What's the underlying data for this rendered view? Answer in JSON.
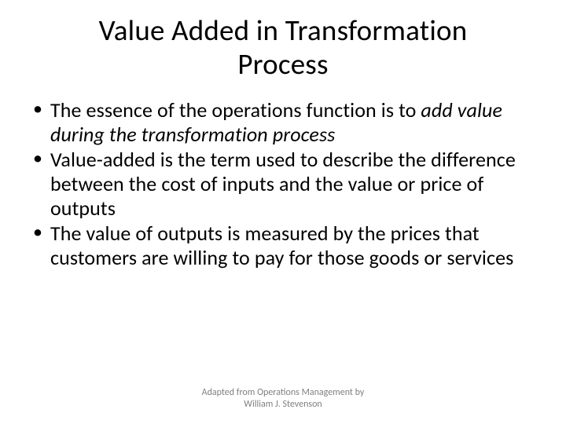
{
  "colors": {
    "background": "#ffffff",
    "text": "#000000",
    "footer_text": "#7f7f7f"
  },
  "typography": {
    "title_fontsize": 37,
    "body_fontsize": 26,
    "footer_fontsize": 12,
    "font_family": "Calibri"
  },
  "title": "Value Added in Transformation Process",
  "bullets": [
    {
      "prefix": "The essence of the operations function is to ",
      "italic": "add value during the transformation process",
      "suffix": ""
    },
    {
      "prefix": "Value-added is the term used to describe the difference between the cost of inputs and the value or price of outputs",
      "italic": "",
      "suffix": ""
    },
    {
      "prefix": "The value of outputs is measured by the prices that customers are willing to pay for those goods or services",
      "italic": "",
      "suffix": ""
    }
  ],
  "footer": {
    "line1": "Adapted from Operations Management by",
    "line2": "William J. Stevenson"
  }
}
